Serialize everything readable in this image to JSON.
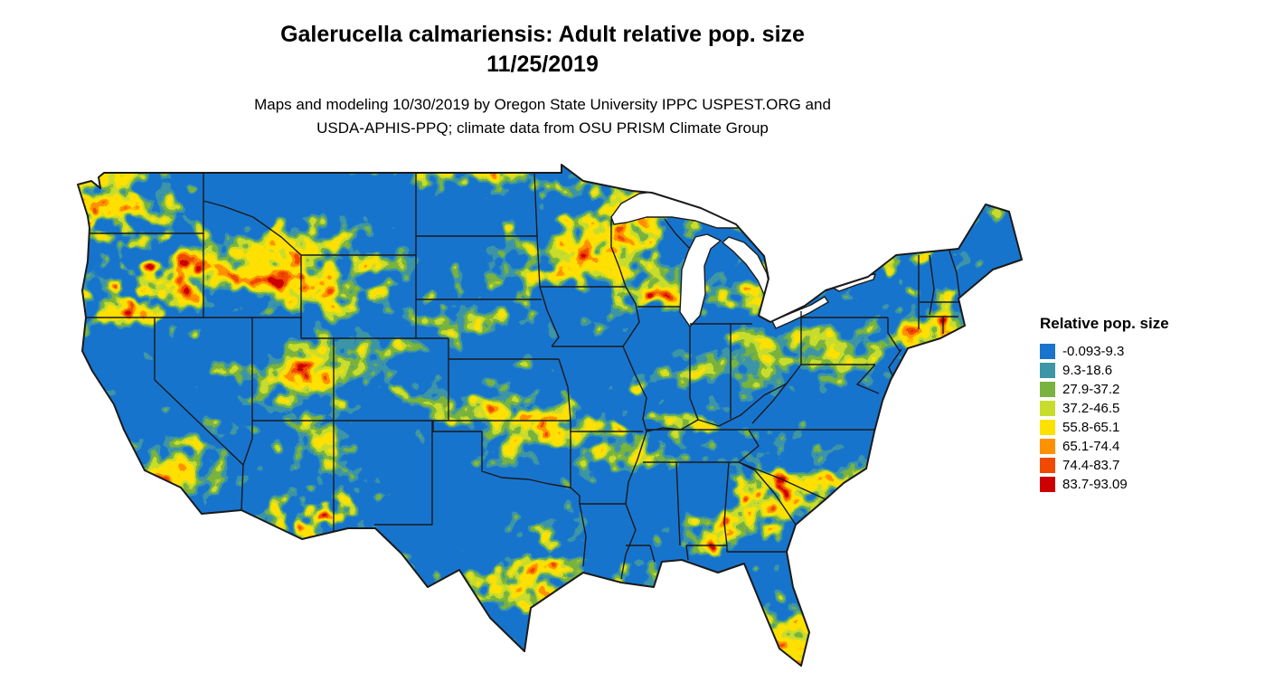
{
  "title": {
    "line1": "Galerucella calmariensis: Adult relative pop. size",
    "line2": "11/25/2019"
  },
  "credits": {
    "line1": "Maps and modeling 10/30/2019 by Oregon State University IPPC USPEST.ORG and",
    "line2": "USDA-APHIS-PPQ; climate data from OSU PRISM Climate Group"
  },
  "map": {
    "region_label": "Continental United States",
    "base_color": "#1874CD",
    "boundary_color": "#1a1a1a",
    "water_color": "#ffffff"
  },
  "legend": {
    "title": "Relative pop. size",
    "entries": [
      {
        "label": "-0.093-9.3",
        "color": "#1874CD"
      },
      {
        "label": "9.3-18.6",
        "color": "#3D96A6"
      },
      {
        "label": "27.9-37.2",
        "color": "#7AB33E"
      },
      {
        "label": "37.2-46.5",
        "color": "#C9DC2E"
      },
      {
        "label": "55.8-65.1",
        "color": "#FFE100"
      },
      {
        "label": "65.1-74.4",
        "color": "#FF9000"
      },
      {
        "label": "74.4-83.7",
        "color": "#F04A00"
      },
      {
        "label": "83.7-93.09",
        "color": "#CC0000"
      }
    ]
  }
}
